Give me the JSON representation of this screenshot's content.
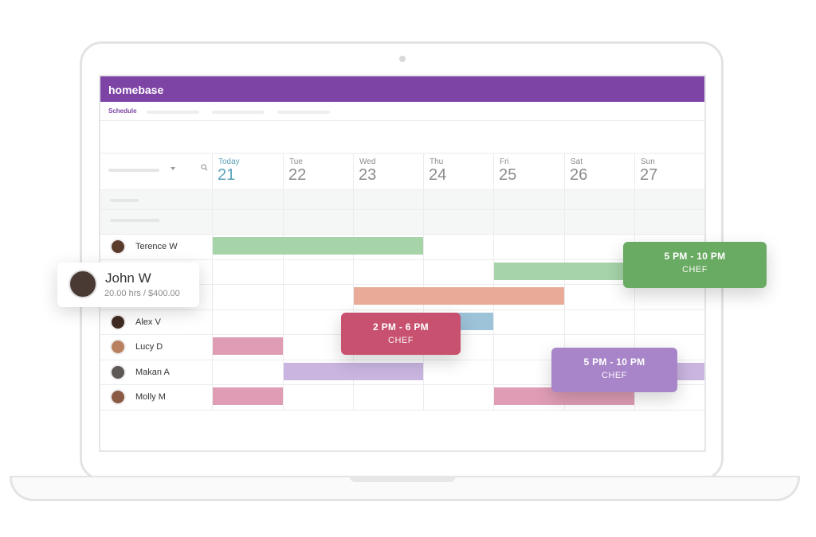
{
  "app": {
    "brand": "homebase",
    "active_tab": "Schedule"
  },
  "days": [
    {
      "name": "Today",
      "num": "21",
      "today": true
    },
    {
      "name": "Tue",
      "num": "22"
    },
    {
      "name": "Wed",
      "num": "23"
    },
    {
      "name": "Thu",
      "num": "24"
    },
    {
      "name": "Fri",
      "num": "25"
    },
    {
      "name": "Sat",
      "num": "26"
    },
    {
      "name": "Sun",
      "num": "27"
    }
  ],
  "employees": [
    {
      "name": "Terence W"
    },
    {
      "name": ""
    },
    {
      "name": ""
    },
    {
      "name": "Alex V"
    },
    {
      "name": "Lucy D"
    },
    {
      "name": "Makan A"
    },
    {
      "name": "Molly M"
    }
  ],
  "colors": {
    "brand": "#7d44a6",
    "green": "#a6d3a8",
    "salmon": "#e9ab98",
    "blue": "#9dc3d9",
    "pink": "#df9db5",
    "lavender": "#c9b5df",
    "green_card": "#6aab63",
    "pink_card": "#c7516f",
    "purple_card": "#a885c8"
  },
  "cards": {
    "green": {
      "time": "5 PM - 10 PM",
      "role": "CHEF"
    },
    "pink": {
      "time": "2 PM - 6 PM",
      "role": "CHEF"
    },
    "purple": {
      "time": "5 PM - 10 PM",
      "role": "CHEF"
    }
  },
  "john": {
    "name": "John W",
    "stats": "20.00 hrs / $400.00"
  }
}
